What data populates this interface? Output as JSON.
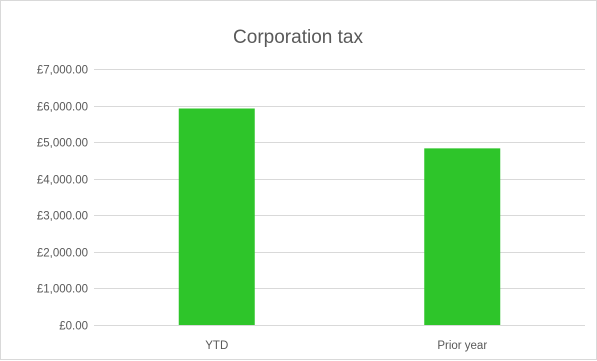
{
  "chart_data": {
    "type": "bar",
    "title": "Corporation tax",
    "xlabel": "",
    "ylabel": "",
    "categories": [
      "YTD",
      "Prior year"
    ],
    "values": [
      5920,
      4830
    ],
    "ylim": [
      0,
      7000
    ],
    "yticks": [
      0,
      1000,
      2000,
      3000,
      4000,
      5000,
      6000,
      7000
    ],
    "ytick_labels": [
      "£0.00",
      "£1,000.00",
      "£2,000.00",
      "£3,000.00",
      "£4,000.00",
      "£5,000.00",
      "£6,000.00",
      "£7,000.00"
    ],
    "grid": true,
    "legend": "none",
    "colors": {
      "bar": "#2ec52a",
      "grid": "#d9d9d9",
      "text": "#595959"
    }
  }
}
